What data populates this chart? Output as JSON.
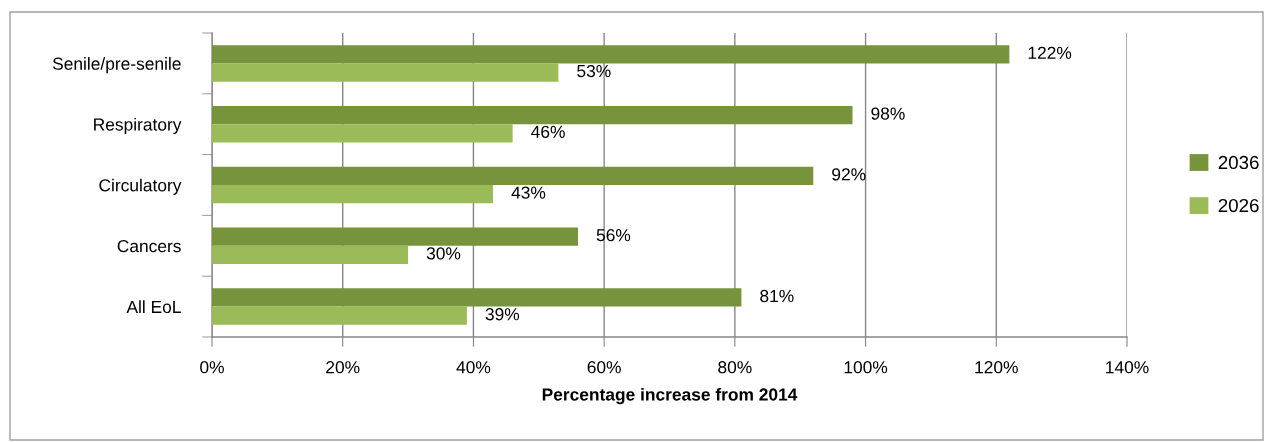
{
  "chart_data": {
    "type": "bar",
    "orientation": "horizontal",
    "categories": [
      "Senile/pre-senile",
      "Respiratory",
      "Circulatory",
      "Cancers",
      "All EoL"
    ],
    "series": [
      {
        "name": "2036",
        "color": "#77933c",
        "values": [
          122,
          98,
          92,
          56,
          81
        ],
        "value_labels": [
          "122%",
          "98%",
          "92%",
          "56%",
          "81%"
        ]
      },
      {
        "name": "2026",
        "color": "#9bbb59",
        "values": [
          53,
          46,
          43,
          30,
          39
        ],
        "value_labels": [
          "53%",
          "46%",
          "43%",
          "30%",
          "39%"
        ]
      }
    ],
    "xlabel": "Percentage increase from 2014",
    "xlim": [
      0,
      140
    ],
    "xticks": [
      {
        "value": 0,
        "label": "0%"
      },
      {
        "value": 20,
        "label": "20%"
      },
      {
        "value": 40,
        "label": "40%"
      },
      {
        "value": 60,
        "label": "60%"
      },
      {
        "value": 80,
        "label": "80%"
      },
      {
        "value": 100,
        "label": "100%"
      },
      {
        "value": 120,
        "label": "120%"
      },
      {
        "value": 140,
        "label": "140%"
      }
    ],
    "grid": "x",
    "legend": "right"
  }
}
